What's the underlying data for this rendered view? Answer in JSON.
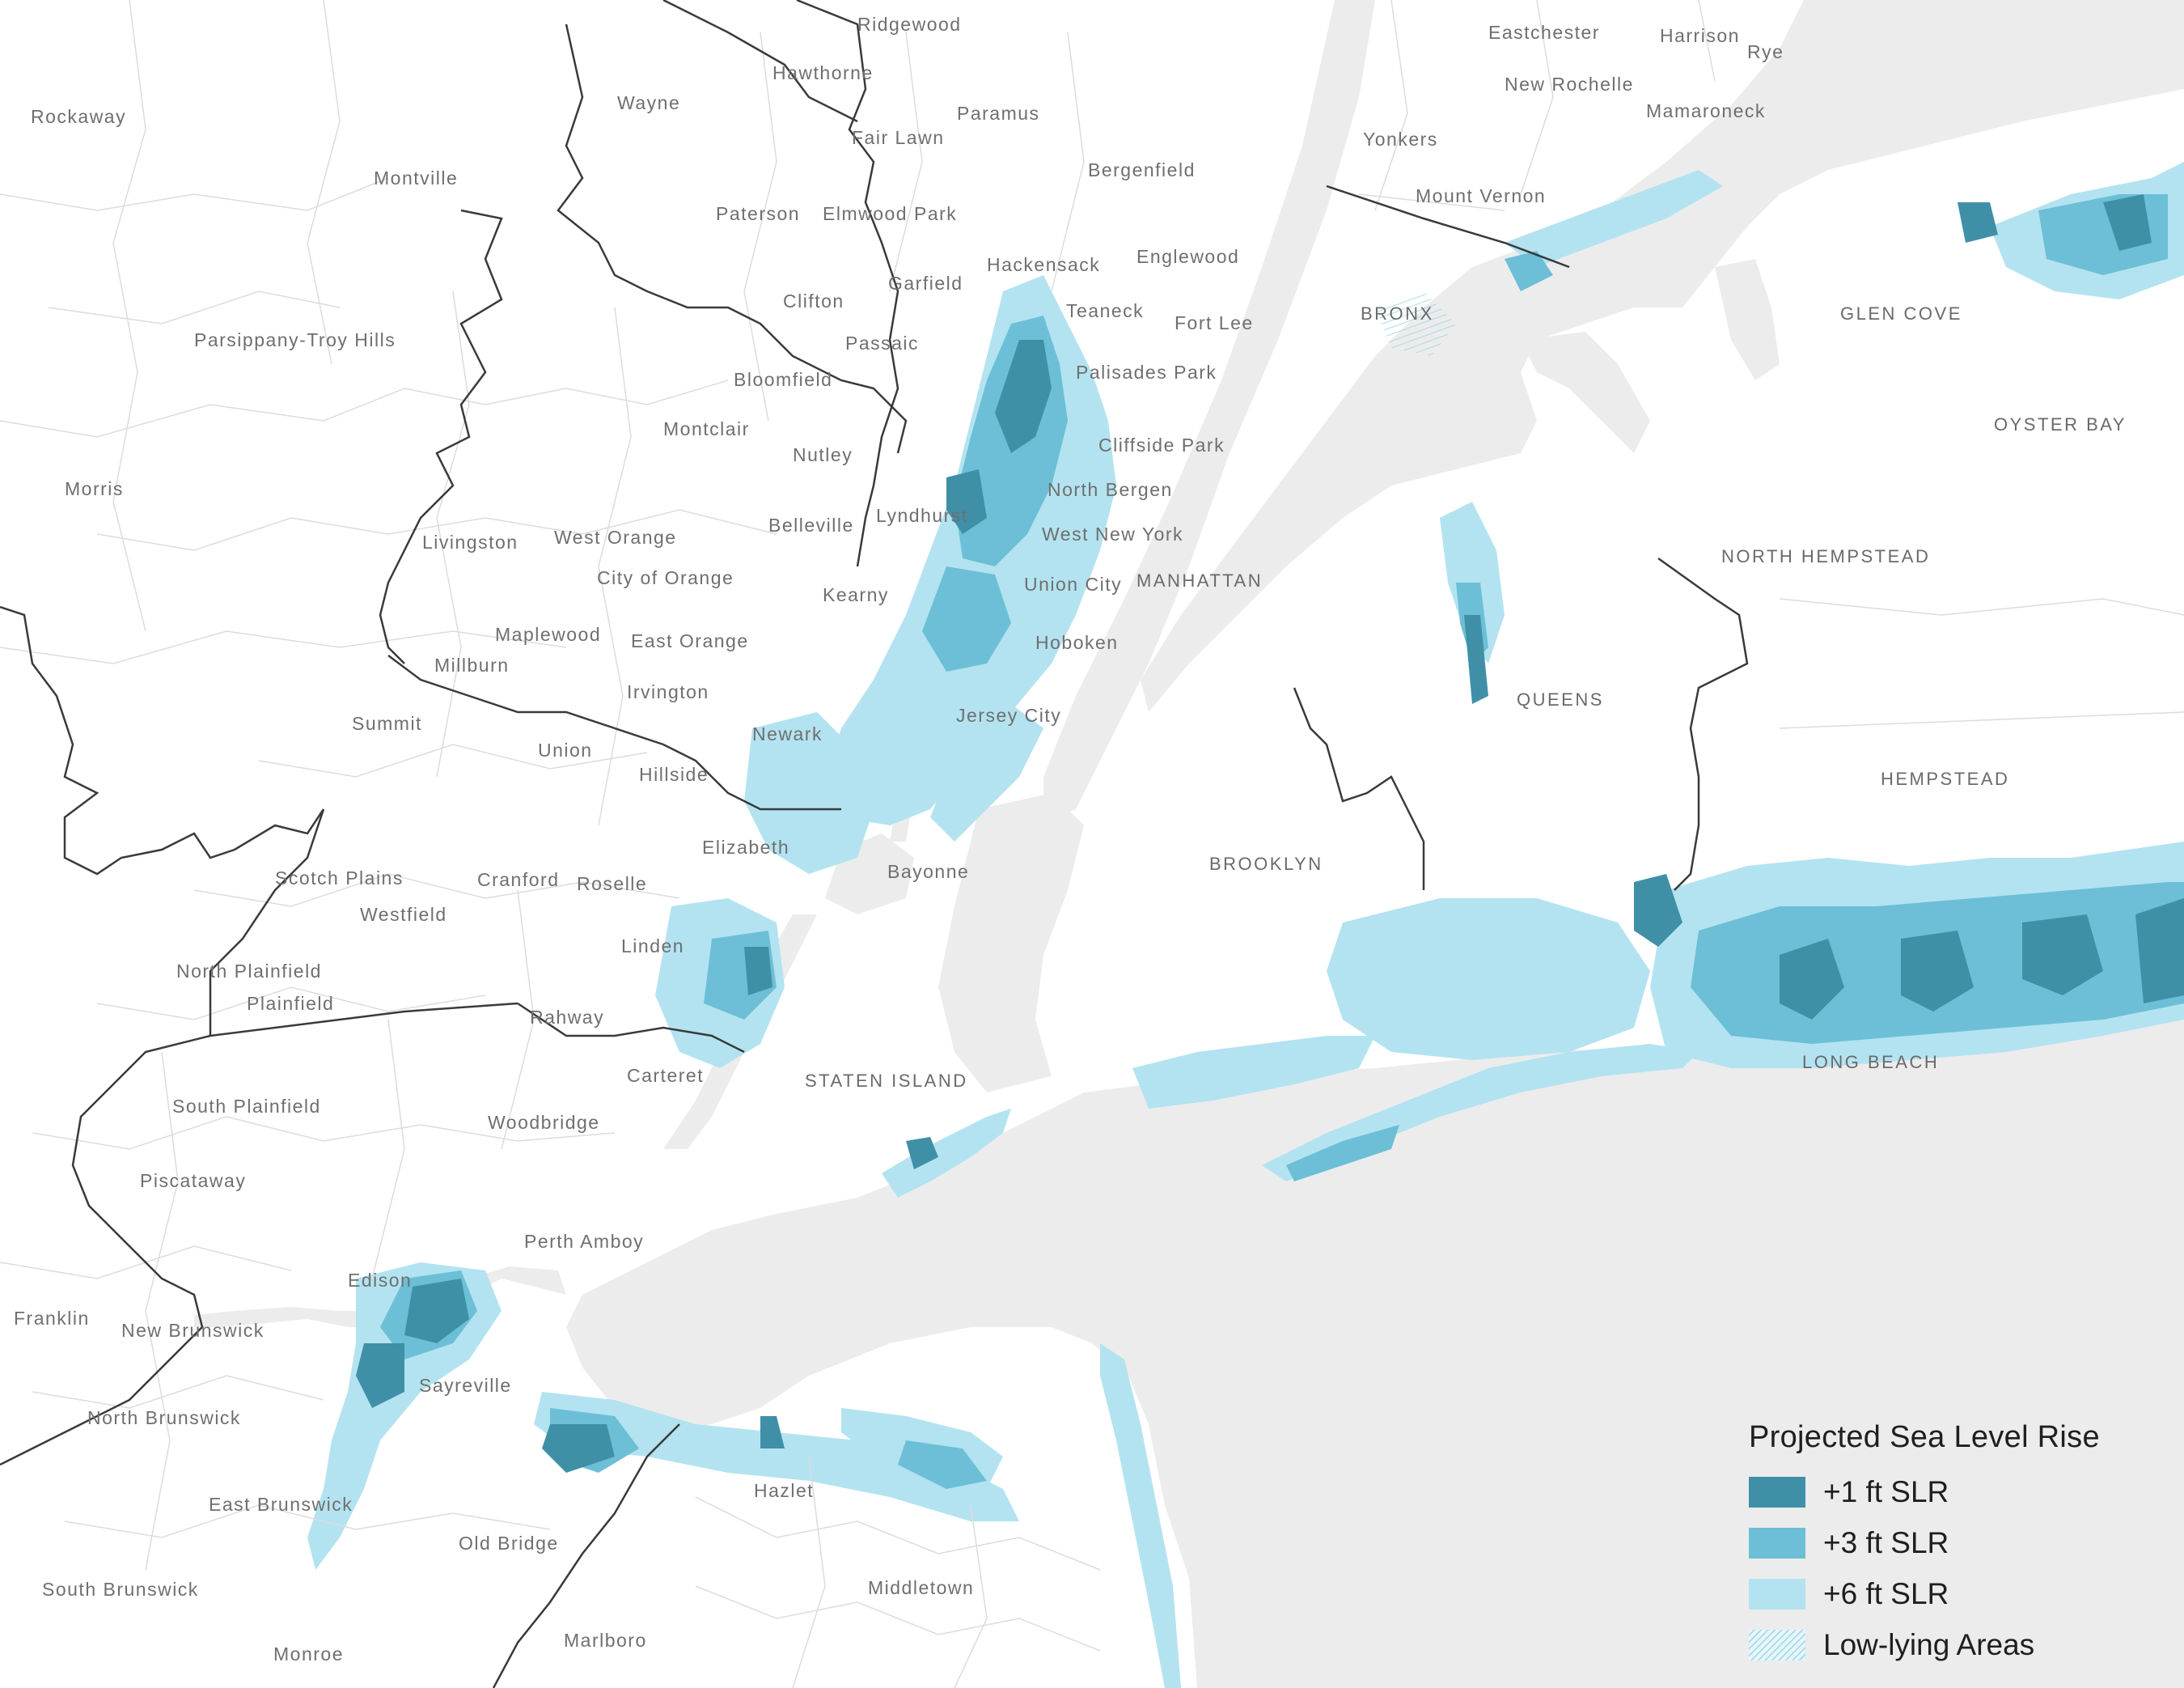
{
  "legend": {
    "title": "Projected Sea Level Rise",
    "items": [
      {
        "label": "+1 ft SLR",
        "color": "#3f90a7",
        "pattern": "solid"
      },
      {
        "label": "+3 ft SLR",
        "color": "#6cbfd6",
        "pattern": "solid"
      },
      {
        "label": "+6 ft SLR",
        "color": "#b3e3f0",
        "pattern": "solid"
      },
      {
        "label": "Low-lying Areas",
        "color": "#b3e3f0",
        "pattern": "hatched"
      }
    ]
  },
  "colors": {
    "water": "#ececec",
    "land": "#ffffff",
    "boundary_major": "#3a3a3a",
    "boundary_minor": "#dcdcdc",
    "label": "#6f6f6f"
  },
  "places": {
    "ridgewood": "Ridgewood",
    "eastchester": "Eastchester",
    "harrison": "Harrison",
    "rye": "Rye",
    "rockaway": "Rockaway",
    "hawthorne": "Hawthorne",
    "wayne": "Wayne",
    "new_rochelle": "New Rochelle",
    "mamaroneck": "Mamaroneck",
    "paramus": "Paramus",
    "fair_lawn": "Fair Lawn",
    "yonkers": "Yonkers",
    "bergenfield": "Bergenfield",
    "montville": "Montville",
    "mount_vernon": "Mount Vernon",
    "paterson": "Paterson",
    "elmwood_park": "Elmwood Park",
    "hackensack": "Hackensack",
    "englewood": "Englewood",
    "garfield": "Garfield",
    "clifton": "Clifton",
    "teaneck": "Teaneck",
    "bronx": "BRONX",
    "glen_cove": "GLEN COVE",
    "fort_lee": "Fort Lee",
    "parsippany": "Parsippany-Troy Hills",
    "passaic": "Passaic",
    "bloomfield": "Bloomfield",
    "palisades_park": "Palisades Park",
    "oyster_bay": "OYSTER BAY",
    "montclair": "Montclair",
    "cliffside_park": "Cliffside Park",
    "nutley": "Nutley",
    "morris": "Morris",
    "north_bergen": "North Bergen",
    "lyndhurst": "Lyndhurst",
    "belleville": "Belleville",
    "livingston": "Livingston",
    "west_orange": "West Orange",
    "west_new_york": "West New York",
    "north_hempstead": "NORTH HEMPSTEAD",
    "city_of_orange": "City of Orange",
    "union_city": "Union City",
    "manhattan": "MANHATTAN",
    "kearny": "Kearny",
    "maplewood": "Maplewood",
    "east_orange": "East Orange",
    "hoboken": "Hoboken",
    "millburn": "Millburn",
    "irvington": "Irvington",
    "queens": "QUEENS",
    "jersey_city": "Jersey City",
    "summit": "Summit",
    "newark": "Newark",
    "union": "Union",
    "hillside": "Hillside",
    "hempstead": "HEMPSTEAD",
    "elizabeth": "Elizabeth",
    "brooklyn": "BROOKLYN",
    "bayonne": "Bayonne",
    "scotch_plains": "Scotch Plains",
    "cranford": "Cranford",
    "roselle": "Roselle",
    "westfield": "Westfield",
    "linden": "Linden",
    "north_plainfield": "North Plainfield",
    "plainfield": "Plainfield",
    "rahway": "Rahway",
    "carteret": "Carteret",
    "staten_island": "STATEN ISLAND",
    "long_beach": "LONG BEACH",
    "south_plainfield": "South Plainfield",
    "woodbridge": "Woodbridge",
    "piscataway": "Piscataway",
    "perth_amboy": "Perth Amboy",
    "edison": "Edison",
    "franklin": "Franklin",
    "new_brunswick": "New Brunswick",
    "sayreville": "Sayreville",
    "north_brunswick": "North Brunswick",
    "hazlet": "Hazlet",
    "east_brunswick": "East Brunswick",
    "old_bridge": "Old Bridge",
    "south_brunswick": "South Brunswick",
    "middletown": "Middletown",
    "marlboro": "Marlboro",
    "monroe": "Monroe"
  }
}
